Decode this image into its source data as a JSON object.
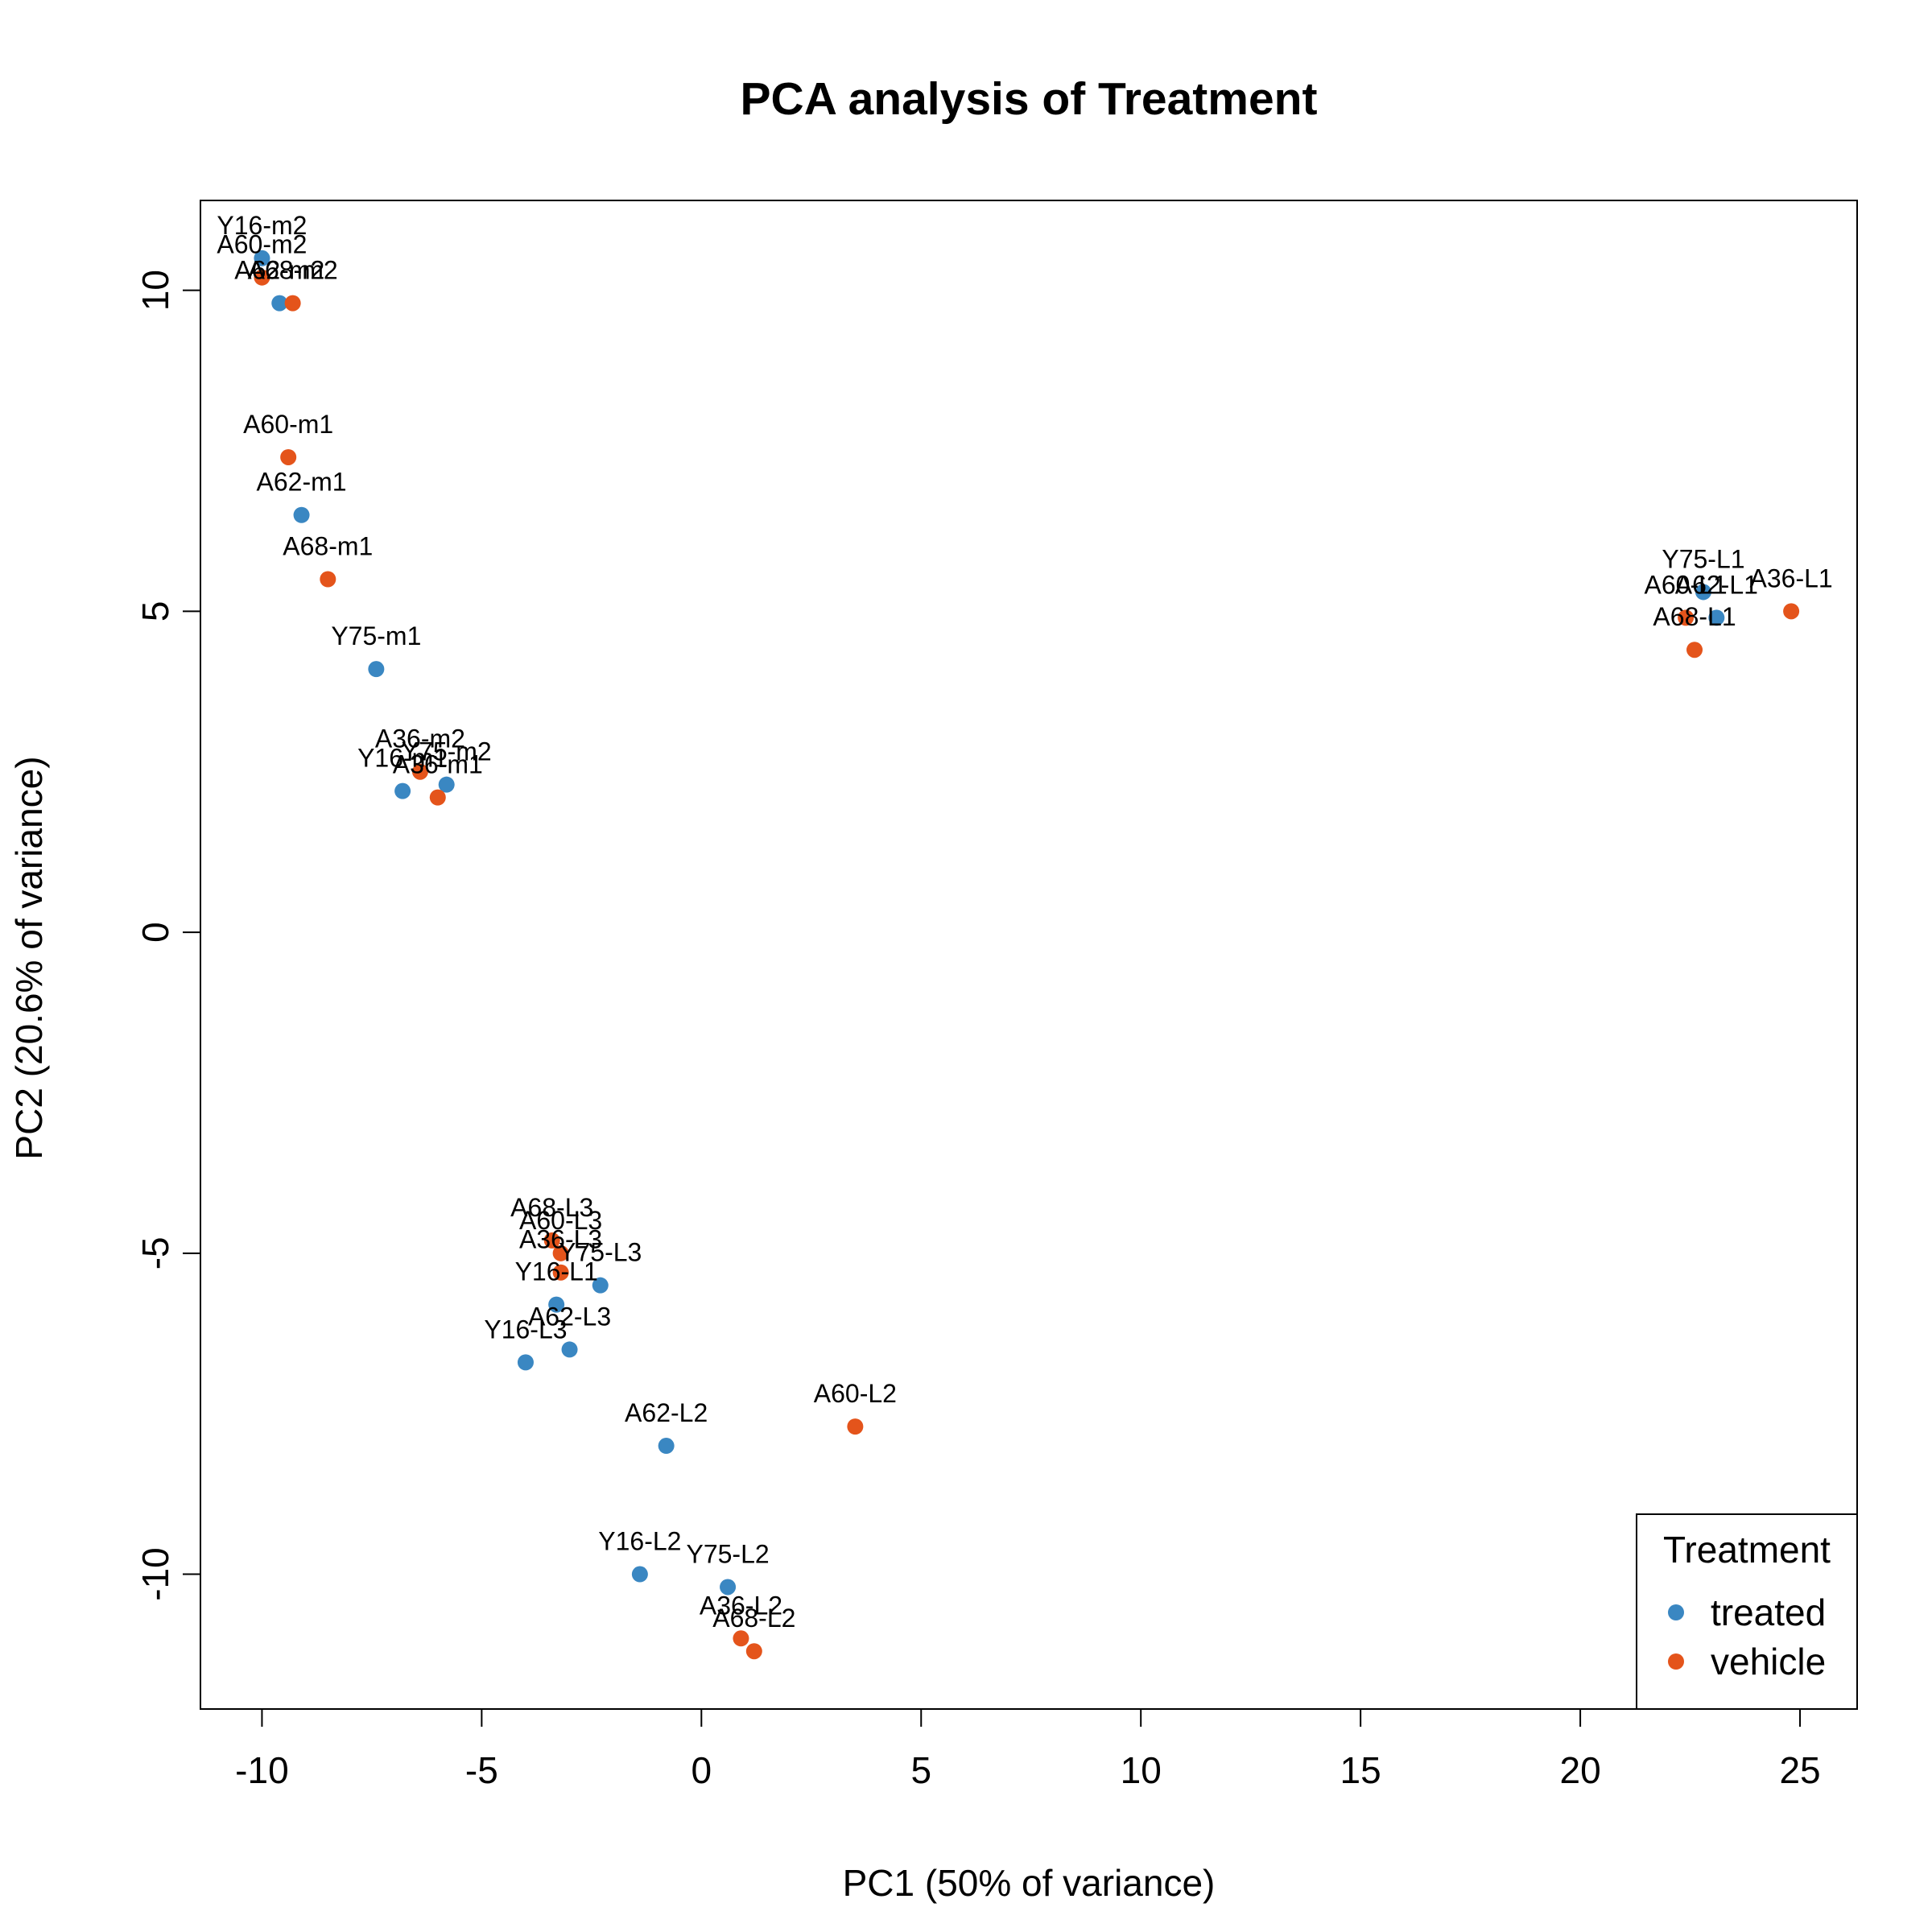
{
  "chart_data": {
    "type": "scatter",
    "title": "PCA analysis of Treatment",
    "xlabel": "PC1 (50% of variance)",
    "ylabel": "PC2 (20.6% of variance)",
    "xlim": [
      -11.4,
      26.3
    ],
    "ylim": [
      -12.1,
      11.4
    ],
    "xticks": [
      -10,
      -5,
      0,
      5,
      10,
      15,
      20,
      25
    ],
    "yticks": [
      -10,
      -5,
      0,
      5,
      10
    ],
    "grid": false,
    "legend": {
      "title": "Treatment",
      "placement": "bottom-right",
      "entries": [
        {
          "name": "treated",
          "color": "#3A87C2"
        },
        {
          "name": "vehicle",
          "color": "#E4541B"
        }
      ]
    },
    "series": [
      {
        "name": "treated",
        "color": "#3A87C2",
        "points": [
          {
            "label": "Y16-m2",
            "x": -10.0,
            "y": 10.5
          },
          {
            "label": "A62-m2",
            "x": -9.6,
            "y": 9.8
          },
          {
            "label": "A62-m1",
            "x": -9.1,
            "y": 6.5
          },
          {
            "label": "Y75-m1",
            "x": -7.4,
            "y": 4.1
          },
          {
            "label": "Y16-m1",
            "x": -6.8,
            "y": 2.2
          },
          {
            "label": "Y75-m2",
            "x": -5.8,
            "y": 2.3
          },
          {
            "label": "Y75-L1",
            "x": 22.8,
            "y": 5.3
          },
          {
            "label": "A62-L1",
            "x": 23.1,
            "y": 4.9
          },
          {
            "label": "Y75-L3",
            "x": -2.3,
            "y": -5.5
          },
          {
            "label": "Y16-L1",
            "x": -3.3,
            "y": -5.8
          },
          {
            "label": "A62-L3",
            "x": -3.0,
            "y": -6.5
          },
          {
            "label": "Y16-L3",
            "x": -4.0,
            "y": -6.7
          },
          {
            "label": "A62-L2",
            "x": -0.8,
            "y": -8.0
          },
          {
            "label": "Y16-L2",
            "x": -1.4,
            "y": -10.0
          },
          {
            "label": "Y75-L2",
            "x": 0.6,
            "y": -10.2
          }
        ]
      },
      {
        "name": "vehicle",
        "color": "#E4541B",
        "points": [
          {
            "label": "A60-m2",
            "x": -10.0,
            "y": 10.2
          },
          {
            "label": "A68-m2",
            "x": -9.3,
            "y": 9.8
          },
          {
            "label": "A60-m1",
            "x": -9.4,
            "y": 7.4
          },
          {
            "label": "A68-m1",
            "x": -8.5,
            "y": 5.5
          },
          {
            "label": "A36-m2",
            "x": -6.4,
            "y": 2.5
          },
          {
            "label": "A36-m1",
            "x": -6.0,
            "y": 2.1
          },
          {
            "label": "A60-L1",
            "x": 22.4,
            "y": 4.9
          },
          {
            "label": "A68-L1",
            "x": 22.6,
            "y": 4.4
          },
          {
            "label": "A36-L1",
            "x": 24.8,
            "y": 5.0
          },
          {
            "label": "A68-L3",
            "x": -3.4,
            "y": -4.8
          },
          {
            "label": "A60-L3",
            "x": -3.2,
            "y": -5.0
          },
          {
            "label": "A36-L3",
            "x": -3.2,
            "y": -5.3
          },
          {
            "label": "A60-L2",
            "x": 3.5,
            "y": -7.7
          },
          {
            "label": "A36-L2",
            "x": 0.9,
            "y": -11.0
          },
          {
            "label": "A68-L2",
            "x": 1.2,
            "y": -11.2
          }
        ]
      }
    ]
  }
}
